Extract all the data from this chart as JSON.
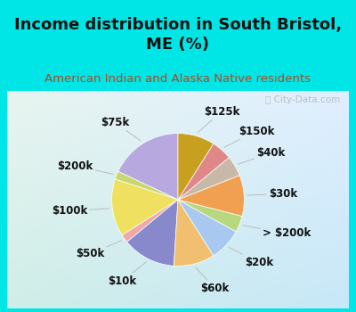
{
  "title": "Income distribution in South Bristol,\nME (%)",
  "subtitle": "American Indian and Alaska Native residents",
  "outer_bg": "#00e5e5",
  "inner_bg": "#d8efe8",
  "labels": [
    "$75k",
    "$200k",
    "$100k",
    "$50k",
    "$10k",
    "$60k",
    "$20k",
    "> $200k",
    "$30k",
    "$40k",
    "$150k",
    "$125k"
  ],
  "values": [
    18,
    2,
    14,
    2,
    13,
    10,
    8,
    4,
    10,
    5,
    5,
    9
  ],
  "colors": [
    "#b8a8e0",
    "#c8d870",
    "#f0e060",
    "#f0a8a8",
    "#8888cc",
    "#f0c070",
    "#a8c8f0",
    "#b8d880",
    "#f0a050",
    "#c8b8a8",
    "#e08888",
    "#c8a020"
  ],
  "startangle": 90,
  "title_fontsize": 13,
  "subtitle_fontsize": 9.5,
  "label_fontsize": 8.5,
  "watermark": "City-Data.com"
}
